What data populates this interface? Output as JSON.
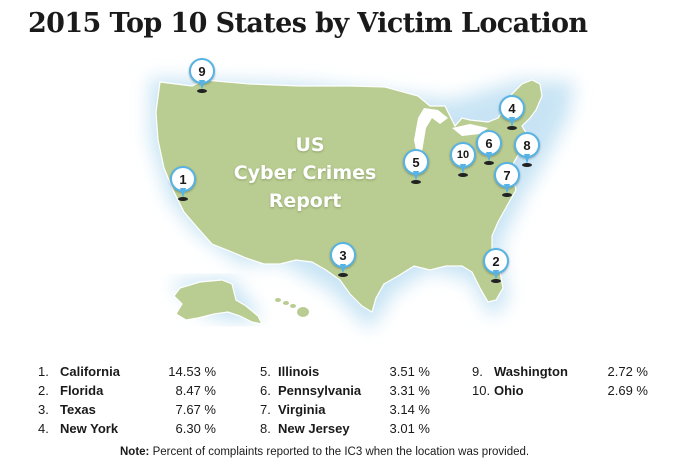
{
  "title": "2015 Top 10 States by Victim Location",
  "map_overlay": {
    "line1": "US",
    "line2": "Cyber Crimes",
    "line3": "Report"
  },
  "colors": {
    "land": "#b9cd92",
    "land_edge": "#ffffff",
    "glow": "#cfe6f4",
    "pin_border": "#57b3e4"
  },
  "pins": [
    {
      "label": "1"
    },
    {
      "label": "2"
    },
    {
      "label": "3"
    },
    {
      "label": "4"
    },
    {
      "label": "5"
    },
    {
      "label": "6"
    },
    {
      "label": "7"
    },
    {
      "label": "8"
    },
    {
      "label": "9"
    },
    {
      "label": "10"
    }
  ],
  "ranking": {
    "col1": [
      {
        "num": "1.",
        "state": "California",
        "pct": "14.53 %"
      },
      {
        "num": "2.",
        "state": "Florida",
        "pct": "8.47 %"
      },
      {
        "num": "3.",
        "state": "Texas",
        "pct": "7.67 %"
      },
      {
        "num": "4.",
        "state": "New York",
        "pct": "6.30 %"
      }
    ],
    "col2": [
      {
        "num": "5.",
        "state": "Illinois",
        "pct": "3.51 %"
      },
      {
        "num": "6.",
        "state": "Pennsylvania",
        "pct": "3.31 %"
      },
      {
        "num": "7.",
        "state": "Virginia",
        "pct": "3.14 %"
      },
      {
        "num": "8.",
        "state": "New Jersey",
        "pct": "3.01 %"
      }
    ],
    "col3": [
      {
        "num": "9.",
        "state": "Washington",
        "pct": "2.72 %"
      },
      {
        "num": "10.",
        "state": "Ohio",
        "pct": "2.69 %"
      }
    ]
  },
  "note": {
    "label": "Note:",
    "text": "Percent of complaints reported to the IC3 when the location was provided."
  }
}
